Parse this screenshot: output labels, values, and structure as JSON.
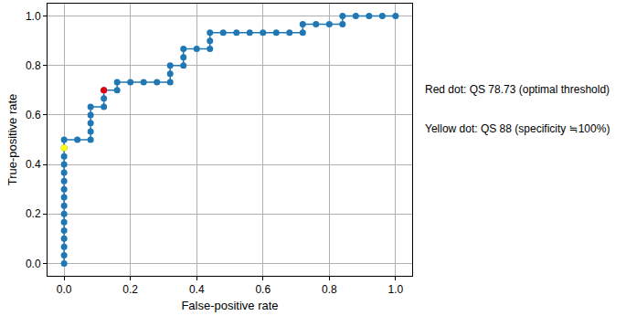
{
  "chart_data": {
    "type": "line",
    "x_label": "False-positive rate",
    "y_label": "True-positive rate",
    "xlim": [
      -0.05,
      1.05
    ],
    "ylim": [
      -0.05,
      1.05
    ],
    "xticks": [
      {
        "value": 0,
        "label": "0.0"
      },
      {
        "value": 0.2,
        "label": "0.2"
      },
      {
        "value": 0.4,
        "label": "0.4"
      },
      {
        "value": 0.6,
        "label": "0.6"
      },
      {
        "value": 0.8,
        "label": "0.8"
      },
      {
        "value": 1,
        "label": "1.0"
      }
    ],
    "yticks": [
      {
        "value": 0,
        "label": "0.0"
      },
      {
        "value": 0.2,
        "label": "0.2"
      },
      {
        "value": 0.4,
        "label": "0.4"
      },
      {
        "value": 0.6,
        "label": "0.6"
      },
      {
        "value": 0.8,
        "label": "0.8"
      },
      {
        "value": 1,
        "label": "1.0"
      }
    ],
    "grid": true,
    "annotations": [
      "Red dot: QS 78.73 (optimal threshold)",
      "Yellow dot: QS 88 (specificity ≒100%)"
    ],
    "series": [
      {
        "color": "#1f77b4",
        "marker": "circle",
        "line_style": "solid",
        "x": [
          0,
          0,
          0,
          0,
          0,
          0,
          0,
          0,
          0,
          0,
          0,
          0,
          0,
          0,
          0,
          0,
          0.04,
          0.08,
          0.08,
          0.08,
          0.08,
          0.08,
          0.12,
          0.12,
          0.12,
          0.16,
          0.16,
          0.2,
          0.24,
          0.28,
          0.32,
          0.32,
          0.32,
          0.36,
          0.36,
          0.36,
          0.4,
          0.44,
          0.44,
          0.44,
          0.48,
          0.52,
          0.56,
          0.6,
          0.64,
          0.68,
          0.72,
          0.72,
          0.76,
          0.8,
          0.84,
          0.84,
          0.88,
          0.92,
          0.96,
          1
        ],
        "y": [
          0,
          0.033,
          0.067,
          0.1,
          0.133,
          0.167,
          0.2,
          0.233,
          0.267,
          0.3,
          0.333,
          0.367,
          0.4,
          0.433,
          0.467,
          0.5,
          0.5,
          0.5,
          0.533,
          0.567,
          0.6,
          0.633,
          0.633,
          0.667,
          0.7,
          0.7,
          0.733,
          0.733,
          0.733,
          0.733,
          0.733,
          0.767,
          0.8,
          0.8,
          0.833,
          0.867,
          0.867,
          0.867,
          0.9,
          0.933,
          0.933,
          0.933,
          0.933,
          0.933,
          0.933,
          0.933,
          0.933,
          0.967,
          0.967,
          0.967,
          0.967,
          1,
          1,
          1,
          1,
          1
        ]
      },
      {
        "color": "#e8000b",
        "marker": "circle",
        "x": [
          0.12
        ],
        "y": [
          0.7
        ]
      },
      {
        "color": "#ffff00",
        "marker": "circle",
        "x": [
          0
        ],
        "y": [
          0.467
        ]
      }
    ]
  }
}
